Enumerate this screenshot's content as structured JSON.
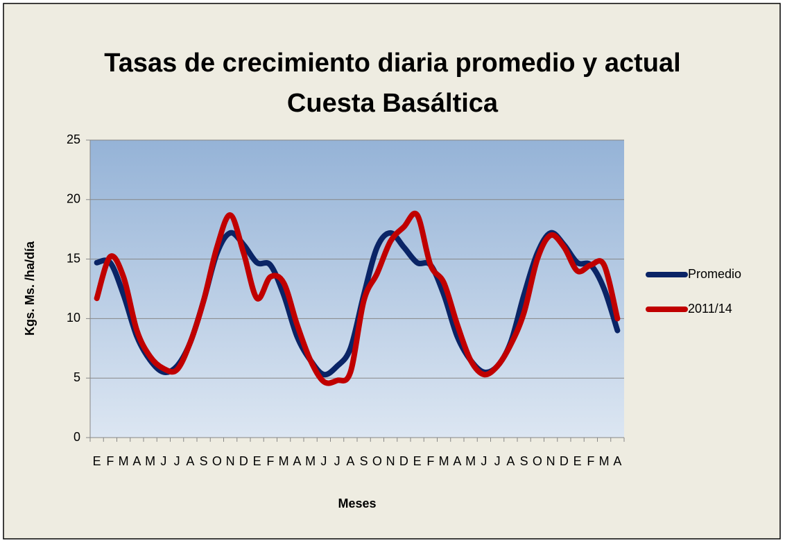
{
  "chart_data": {
    "type": "line",
    "title": "Tasas de crecimiento diaria promedio y actual Cuesta Basáltica",
    "x_label": "Meses",
    "y_label": "Kgs. Ms. /ha/día",
    "categories": [
      "E",
      "F",
      "M",
      "A",
      "M",
      "J",
      "J",
      "A",
      "S",
      "O",
      "N",
      "D",
      "E",
      "F",
      "M",
      "A",
      "M",
      "J",
      "J",
      "A",
      "S",
      "O",
      "N",
      "D",
      "E",
      "F",
      "M",
      "A",
      "M",
      "J",
      "J",
      "A",
      "S",
      "O",
      "N",
      "D",
      "E",
      "F",
      "M",
      "A"
    ],
    "series": [
      {
        "name": "Promedio",
        "color": "#0a2466",
        "values": [
          14.7,
          14.7,
          12,
          8.5,
          6.5,
          5.5,
          6,
          8,
          11.5,
          15.5,
          17.2,
          16.2,
          14.7,
          14.5,
          12,
          8.5,
          6.5,
          5.3,
          6,
          7.5,
          12,
          16,
          17.2,
          16,
          14.7,
          14.5,
          12,
          8.5,
          6.5,
          5.5,
          6,
          8,
          12,
          15.5,
          17.2,
          16.2,
          14.7,
          14.5,
          12.5,
          9
        ]
      },
      {
        "name": "2011/14",
        "color": "#c00000",
        "values": [
          11.7,
          15.2,
          13.5,
          9,
          6.8,
          5.8,
          5.7,
          8,
          11.5,
          16,
          18.7,
          15.5,
          11.7,
          13.5,
          13,
          9.5,
          6.5,
          4.7,
          4.8,
          5.5,
          11.5,
          13.8,
          16.5,
          17.7,
          18.7,
          14.5,
          13,
          9.5,
          6.5,
          5.3,
          6,
          7.8,
          10.5,
          15,
          17,
          16,
          14,
          14.5,
          14.5,
          10
        ]
      }
    ],
    "ylim": [
      0,
      25
    ],
    "yticks": [
      0,
      5,
      10,
      15,
      20,
      25
    ],
    "grid": true,
    "legend": "right"
  }
}
